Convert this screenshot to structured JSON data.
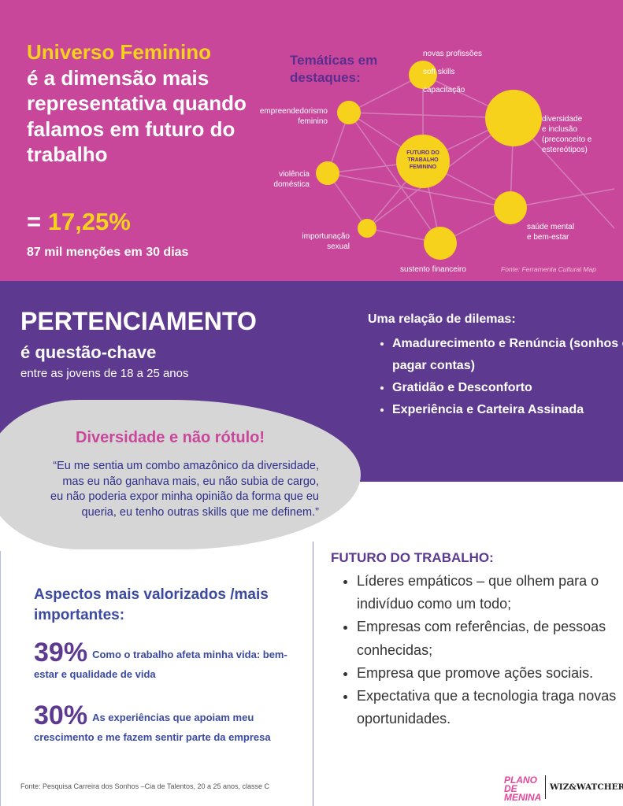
{
  "colors": {
    "pink": "#c9479a",
    "purple": "#5d3a8f",
    "yellow": "#f7d21c",
    "gray_bubble": "#d6d6d6",
    "navy_text": "#3b4aa0"
  },
  "top": {
    "headline_accent": "Universo Feminino",
    "headline_rest": "é a dimensão mais representativa quando falamos em futuro do trabalho",
    "equals": "= ",
    "percent": "17,25%",
    "mentions": "87 mil menções em 30 dias",
    "network_title": "Temáticas em destaques:",
    "center_label": "FUTURO DO TRABALHO FEMININO",
    "nodes": [
      "novas profissões\nsoft skills\ncapacitação",
      "diversidade\ne inclusão\n(preconceito e\nestereótipos)",
      "empreendedorismo\nfeminino",
      "violência\ndoméstica",
      "importunação\nsexual",
      "sustento financeiro",
      "saúde mental\ne bem-estar"
    ],
    "source": "Fonte: Ferramenta Cultural Map"
  },
  "pertenciamento": {
    "title": "PERTENCIAMENTO",
    "subtitle": "é questão-chave",
    "note": "entre as jovens de 18 a 25 anos",
    "dilemas_title": "Uma relação de dilemas:",
    "dilemas": [
      "Amadurecimento e Renúncia (sonhos e pagar contas)",
      "Gratidão e Desconforto",
      "Experiência e Carteira Assinada"
    ]
  },
  "bubble": {
    "title": "Diversidade e não rótulo!",
    "quote": "“Eu me sentia um combo amazônico da diversidade, mas eu não ganhava mais, eu não subia de cargo, eu não  poderia expor minha opinião da forma que eu queria, eu tenho outras skills que me definem.”"
  },
  "aspects": {
    "title": "Aspectos mais valorizados /mais importantes:",
    "stats": [
      {
        "value": "39%",
        "text": "Como o trabalho afeta minha vida: bem-estar e qualidade de vida"
      },
      {
        "value": "30%",
        "text": "As experiências que apoiam meu crescimento e me fazem sentir parte da empresa"
      }
    ],
    "source": "Fonte: Pesquisa Carreira dos Sonhos –Cia de Talentos, 20 a 25 anos, classe C"
  },
  "future": {
    "title": "FUTURO DO TRABALHO:",
    "items": [
      "Líderes empáticos – que olhem para o indivíduo como um todo;",
      "Empresas com referências, de pessoas conhecidas;",
      "Empresa que promove ações sociais.",
      "Expectativa que a tecnologia traga novas oportunidades."
    ]
  },
  "logos": {
    "plano": "PLANO DE MENINA",
    "wiz": "WIZ&WATCHER"
  }
}
